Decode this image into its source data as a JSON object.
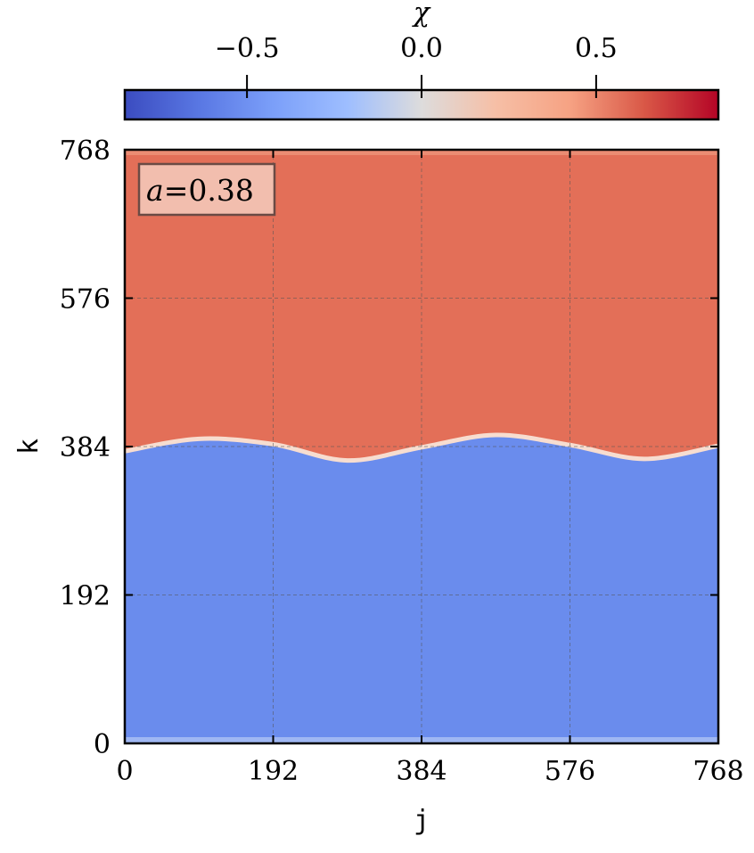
{
  "chart_data": {
    "type": "heatmap",
    "annotation": {
      "symbol": "a",
      "equals": "=",
      "value": "0.38"
    },
    "xlabel": "j",
    "ylabel": "k",
    "xlim": [
      0,
      768
    ],
    "ylim": [
      0,
      768
    ],
    "x_ticks": [
      0,
      192,
      384,
      576,
      768
    ],
    "y_ticks": [
      0,
      192,
      384,
      576,
      768
    ],
    "grid": true,
    "colorbar": {
      "label": "χ",
      "orientation": "horizontal",
      "position": "top",
      "range": [
        -0.85,
        0.85
      ],
      "ticks": [
        {
          "value": -0.5,
          "label": "−0.5"
        },
        {
          "value": 0.0,
          "label": "0.0"
        },
        {
          "value": 0.5,
          "label": "0.5"
        }
      ],
      "colormap": "coolwarm"
    },
    "regions": [
      {
        "name": "upper",
        "value": 0.62,
        "color": "#e36f58"
      },
      {
        "name": "lower",
        "value": -0.62,
        "color": "#6a8ced"
      }
    ],
    "interface": {
      "description": "sinusoidal boundary near k = 384",
      "k_points": [
        [
          0,
          378
        ],
        [
          96,
          394
        ],
        [
          192,
          387
        ],
        [
          288,
          366
        ],
        [
          384,
          383
        ],
        [
          480,
          399
        ],
        [
          576,
          386
        ],
        [
          672,
          368
        ],
        [
          768,
          385
        ]
      ]
    }
  }
}
